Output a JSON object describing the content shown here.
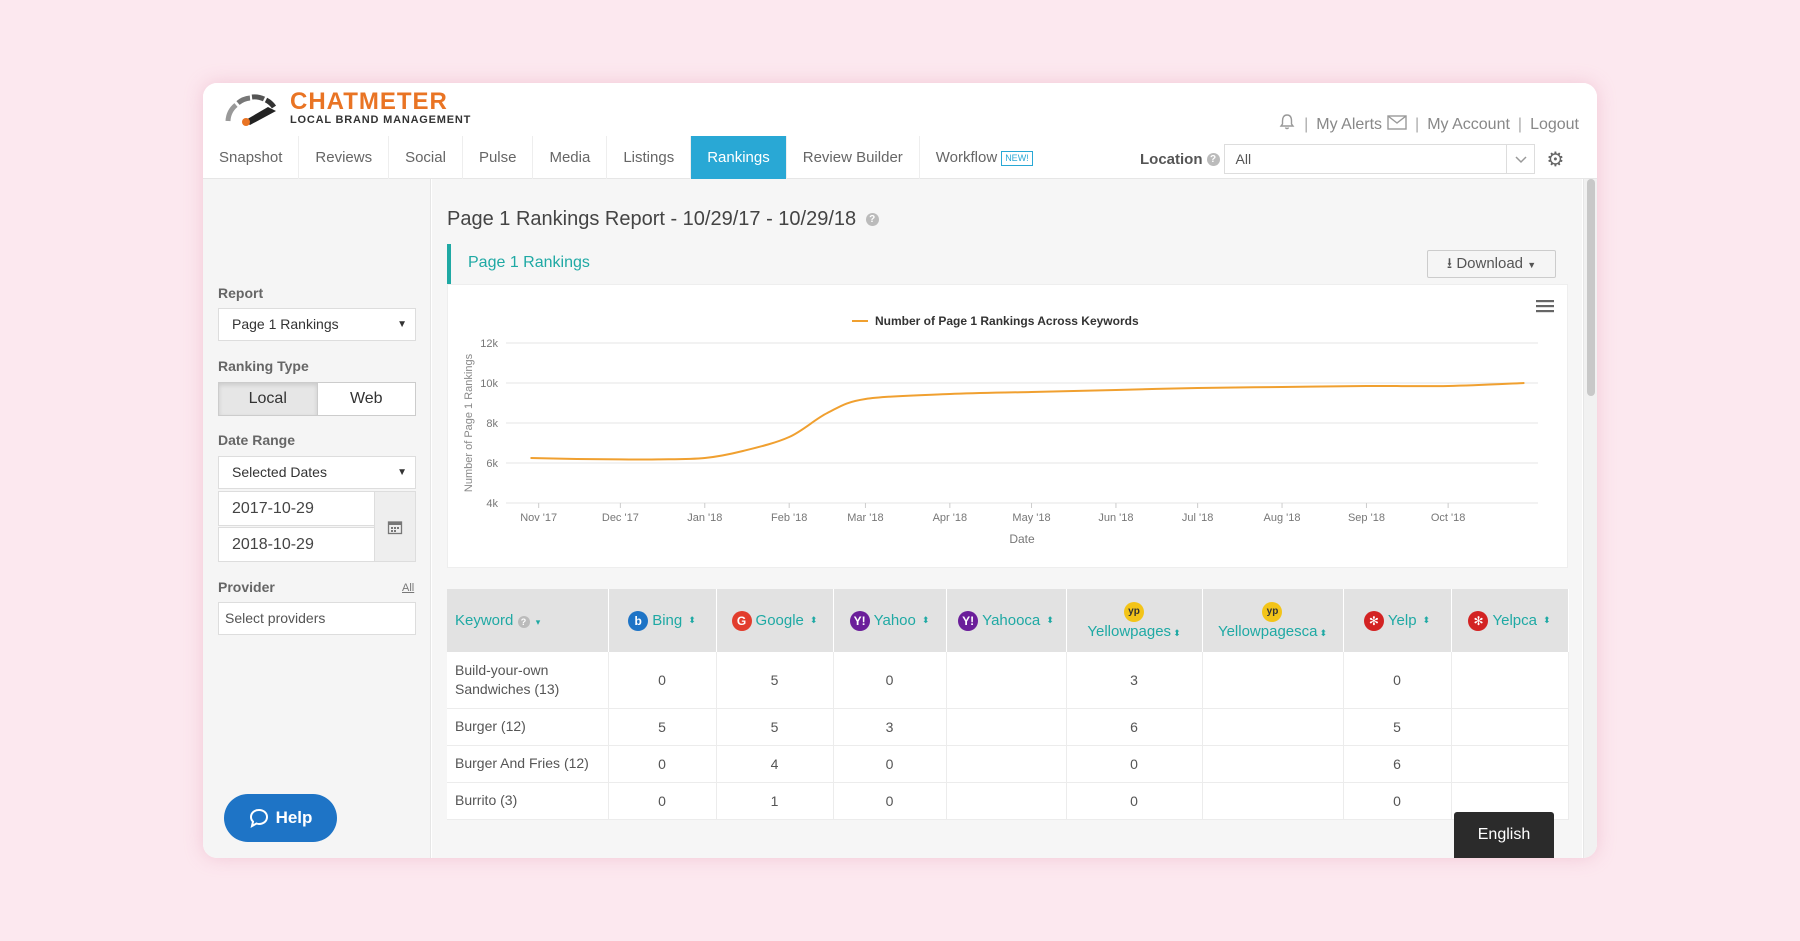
{
  "brand": {
    "name": "CHATMETER",
    "tagline": "LOCAL BRAND MANAGEMENT",
    "color": "#e97424"
  },
  "top_links": {
    "alerts": "My Alerts",
    "account": "My Account",
    "logout": "Logout"
  },
  "nav": {
    "items": [
      "Snapshot",
      "Reviews",
      "Social",
      "Pulse",
      "Media",
      "Listings",
      "Rankings",
      "Review Builder"
    ],
    "workflow": "Workflow",
    "workflow_badge": "NEW!",
    "active": "Rankings"
  },
  "location": {
    "label": "Location",
    "value": "All"
  },
  "sidebar": {
    "report_label": "Report",
    "report_value": "Page 1 Rankings",
    "ranking_type_label": "Ranking Type",
    "ranking_types": [
      "Local",
      "Web"
    ],
    "date_range_label": "Date Range",
    "date_range_value": "Selected Dates",
    "start_date": "2017-10-29",
    "end_date": "2018-10-29",
    "provider_label": "Provider",
    "provider_all": "All",
    "provider_placeholder": "Select providers",
    "help": "Help"
  },
  "main": {
    "title": "Page 1 Rankings Report - 10/29/17 - 10/29/18",
    "panel_title": "Page 1 Rankings",
    "download": "Download"
  },
  "chart_data": {
    "type": "line",
    "legend": "Number of Page 1 Rankings Across Keywords",
    "legend_position": "top-center",
    "xlabel": "Date",
    "ylabel": "Number of Page 1 Rankings",
    "x_ticks": [
      "Nov '17",
      "Dec '17",
      "Jan '18",
      "Feb '18",
      "Mar '18",
      "Apr '18",
      "May '18",
      "Jun '18",
      "Jul '18",
      "Aug '18",
      "Sep '18",
      "Oct '18"
    ],
    "y_ticks": [
      "4k",
      "6k",
      "8k",
      "10k",
      "12k"
    ],
    "ylim": [
      4000,
      12000
    ],
    "x": [
      "2017-10-29",
      "2017-11-15",
      "2017-12-01",
      "2017-12-15",
      "2018-01-01",
      "2018-01-15",
      "2018-02-01",
      "2018-02-15",
      "2018-03-01",
      "2018-04-01",
      "2018-05-01",
      "2018-06-01",
      "2018-07-01",
      "2018-08-01",
      "2018-09-01",
      "2018-10-01",
      "2018-10-29"
    ],
    "series": [
      {
        "color": "#f0a030",
        "values": [
          6250,
          6200,
          6180,
          6180,
          6250,
          6600,
          7300,
          8500,
          9200,
          9450,
          9550,
          9650,
          9750,
          9800,
          9850,
          9850,
          10000
        ]
      }
    ],
    "grid": true
  },
  "table": {
    "keyword_header": "Keyword",
    "providers": [
      {
        "name": "Bing",
        "color": "#1e74c6",
        "glyph": "b"
      },
      {
        "name": "Google",
        "color": "#e23d2d",
        "glyph": "G"
      },
      {
        "name": "Yahoo",
        "color": "#6b1e9a",
        "glyph": "Y!"
      },
      {
        "name": "Yahooca",
        "color": "#6b1e9a",
        "glyph": "Y!"
      },
      {
        "name": "Yellowpages",
        "color": "#f3c418",
        "glyph": "yp"
      },
      {
        "name": "Yellowpagesca",
        "color": "#f3c418",
        "glyph": "yp"
      },
      {
        "name": "Yelp",
        "color": "#d32323",
        "glyph": "✻"
      },
      {
        "name": "Yelpca",
        "color": "#d32323",
        "glyph": "✻"
      }
    ],
    "rows": [
      {
        "keyword": "Build-your-own Sandwiches (13)",
        "values": [
          "0",
          "5",
          "0",
          "",
          "3",
          "",
          "0",
          ""
        ]
      },
      {
        "keyword": "Burger (12)",
        "values": [
          "5",
          "5",
          "3",
          "",
          "6",
          "",
          "5",
          ""
        ]
      },
      {
        "keyword": "Burger And Fries (12)",
        "values": [
          "0",
          "4",
          "0",
          "",
          "0",
          "",
          "6",
          ""
        ]
      },
      {
        "keyword": "Burrito (3)",
        "values": [
          "0",
          "1",
          "0",
          "",
          "0",
          "",
          "0",
          ""
        ]
      }
    ]
  },
  "language": "English"
}
